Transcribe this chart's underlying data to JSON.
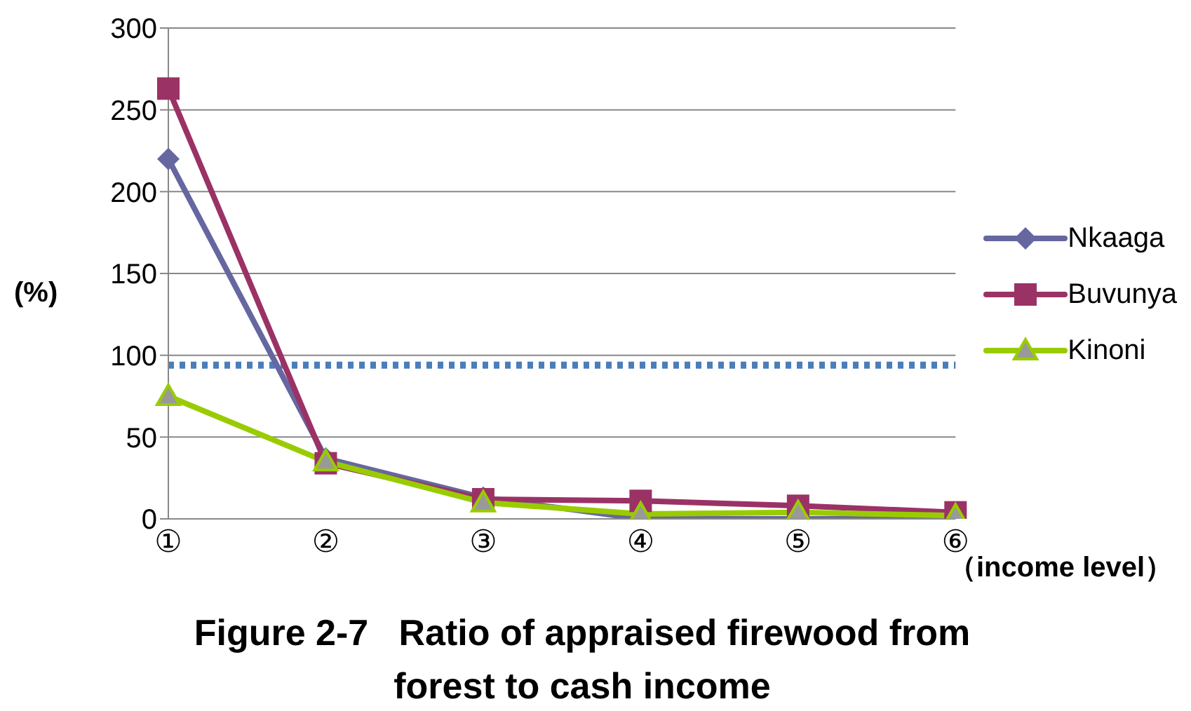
{
  "chart_data": {
    "type": "line",
    "title": "Figure 2-7   Ratio of appraised firewood from forest to cash income",
    "xlabel": "（income level）",
    "ylabel": "(%)",
    "categories": [
      "①",
      "②",
      "③",
      "④",
      "⑤",
      "⑥"
    ],
    "series": [
      {
        "name": "Nkaaga",
        "color": "#6667a0",
        "marker": "diamond",
        "values": [
          220,
          37,
          13,
          0,
          0,
          0
        ]
      },
      {
        "name": "Buvunya",
        "color": "#9b3266",
        "marker": "square",
        "values": [
          263,
          34,
          12,
          11,
          8,
          4
        ]
      },
      {
        "name": "Kinoni",
        "color": "#99cc00",
        "marker": "triangle",
        "values": [
          75,
          35,
          10,
          3,
          4,
          2
        ]
      }
    ],
    "ylim": [
      0,
      300
    ],
    "yticks": [
      0,
      50,
      100,
      150,
      200,
      250,
      300
    ],
    "grid": "y",
    "legend": "right",
    "line_style": "solid",
    "ref_lines": [
      {
        "axis": "y",
        "value": 94,
        "color": "#4a7ebb",
        "line_style": "dotted"
      }
    ]
  }
}
